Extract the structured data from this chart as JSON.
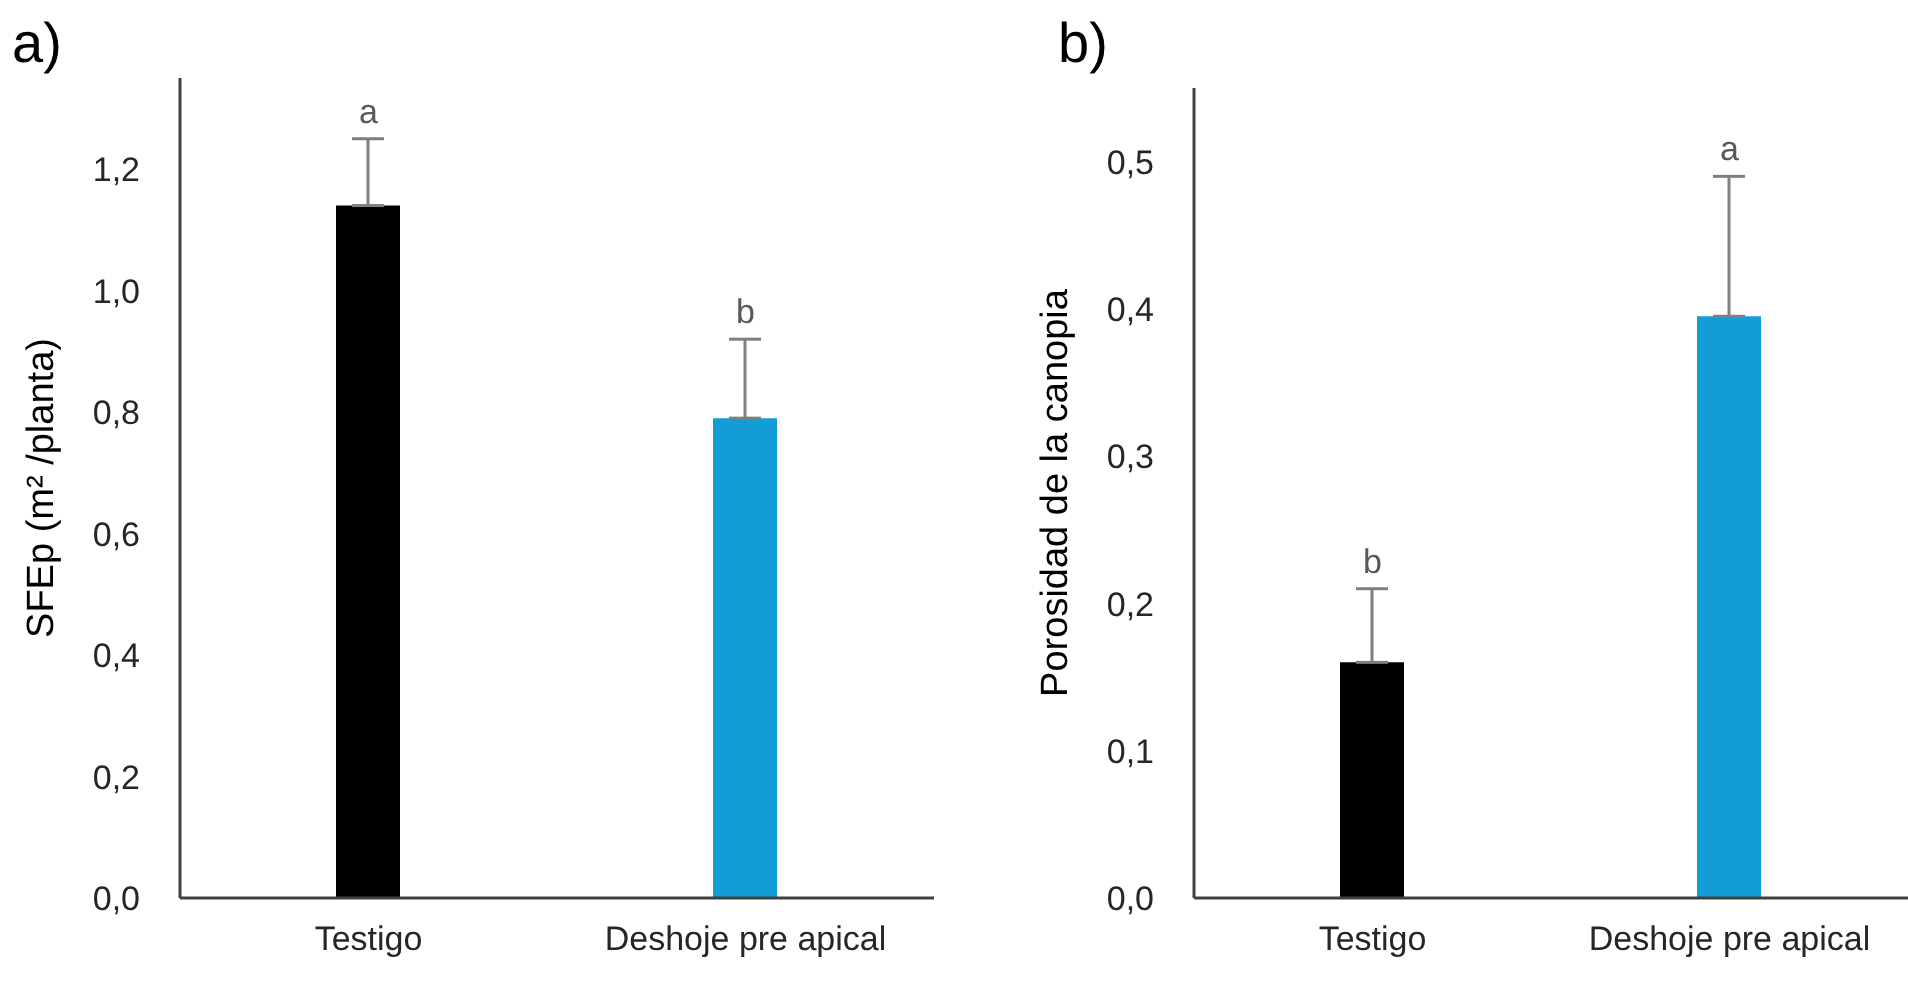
{
  "chart_data": [
    {
      "type": "bar",
      "title": "a)",
      "ylabel": "SFEp (m² /planta)",
      "categories": [
        "Testigo",
        "Deshoje pre apical"
      ],
      "values": [
        1.14,
        0.79
      ],
      "colors": [
        "#000000",
        "#129dd6"
      ],
      "errors": [
        [
          1.14,
          1.25
        ],
        [
          0.79,
          0.92
        ]
      ],
      "ylim": [
        0,
        1.35
      ],
      "yticks": [
        {
          "value": 0,
          "label": "0,0"
        },
        {
          "value": 0.2,
          "label": "0,2"
        },
        {
          "value": 0.4,
          "label": "0,4"
        },
        {
          "value": 0.6,
          "label": "0,6"
        },
        {
          "value": 0.8,
          "label": "0,8"
        },
        {
          "value": 1.0,
          "label": "1,0"
        },
        {
          "value": 1.2,
          "label": "1,2"
        }
      ],
      "annotations": [
        "a",
        "b"
      ],
      "grid": false,
      "legend": false
    },
    {
      "type": "bar",
      "title": "b)",
      "ylabel": "Porosidad de la canopia",
      "categories": [
        "Testigo",
        "Deshoje pre apical"
      ],
      "values": [
        0.16,
        0.395
      ],
      "colors": [
        "#000000",
        "#129dd6"
      ],
      "errors": [
        [
          0.16,
          0.21
        ],
        [
          0.395,
          0.49
        ]
      ],
      "ylim": [
        0,
        0.55
      ],
      "yticks": [
        {
          "value": 0,
          "label": "0,0"
        },
        {
          "value": 0.1,
          "label": "0,1"
        },
        {
          "value": 0.2,
          "label": "0,2"
        },
        {
          "value": 0.3,
          "label": "0,3"
        },
        {
          "value": 0.4,
          "label": "0,4"
        },
        {
          "value": 0.5,
          "label": "0,5"
        }
      ],
      "annotations": [
        "b",
        "a"
      ],
      "grid": false,
      "legend": false
    }
  ]
}
